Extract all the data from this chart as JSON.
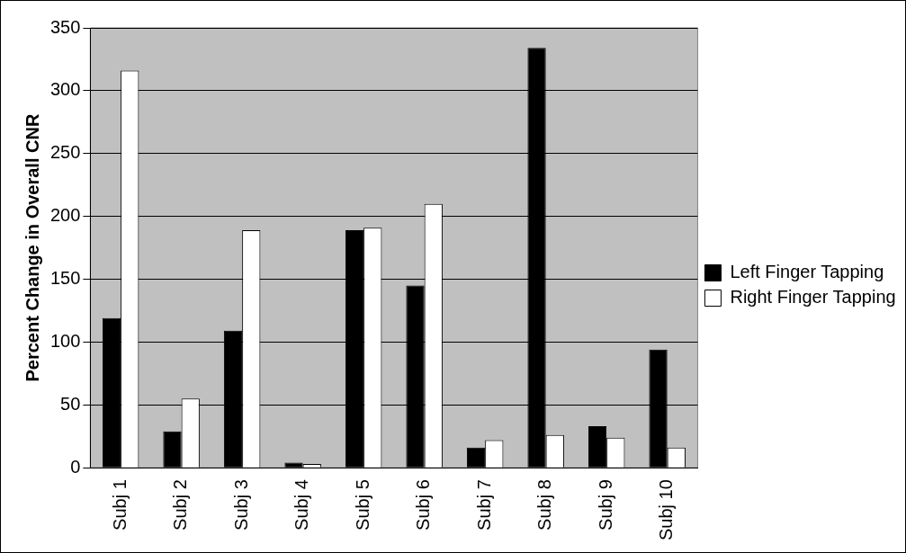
{
  "chart_data": {
    "type": "bar",
    "ylabel": "Percent Change in Overall CNR",
    "categories": [
      "Subj 1",
      "Subj 2",
      "Subj 3",
      "Subj 4",
      "Subj 5",
      "Subj 6",
      "Subj 7",
      "Subj 8",
      "Subj 9",
      "Subj 10"
    ],
    "series": [
      {
        "name": "Left Finger Tapping",
        "color": "#000000",
        "values": [
          119,
          29,
          109,
          4,
          189,
          145,
          16,
          334,
          33,
          94
        ]
      },
      {
        "name": "Right Finger Tapping",
        "color": "#ffffff",
        "values": [
          316,
          55,
          189,
          3,
          191,
          210,
          22,
          26,
          24,
          16
        ]
      }
    ],
    "ylim": [
      0,
      350
    ],
    "yticks": [
      0,
      50,
      100,
      150,
      200,
      250,
      300,
      350
    ],
    "grid": "y",
    "legend": "right"
  }
}
